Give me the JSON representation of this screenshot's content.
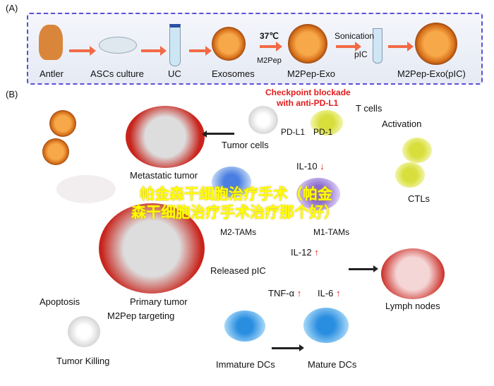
{
  "panel_a": {
    "label": "(A)",
    "steps": [
      "Antler",
      "ASCs culture",
      "UC",
      "Exosomes",
      "M2Pep-Exo",
      "M2Pep-Exo(pIC)"
    ],
    "temp": "37℃",
    "peptide": "M2Pep",
    "sonication": "Sonication",
    "pic": "pIC"
  },
  "panel_b": {
    "label": "(B)",
    "checkpoint": "Checkpoint blockade",
    "checkpoint2": "with anti-PD-L1",
    "t_cells": "T cells",
    "pd_l1": "PD-L1",
    "pd_1": "PD-1",
    "activation": "Activation",
    "tumor_cells": "Tumor cells",
    "metastatic": "Metastatic tumor",
    "il10": "IL-10",
    "m2_tams": "M2-TAMs",
    "m1_tams": "M1-TAMs",
    "ctls": "CTLs",
    "il12": "IL-12",
    "released": "Released pIC",
    "tnf": "TNF-α",
    "il6": "IL-6",
    "primary": "Primary tumor",
    "apoptosis": "Apoptosis",
    "targeting": "M2Pep targeting",
    "killing": "Tumor Killing",
    "lymph": "Lymph nodes",
    "immature": "Immature DCs",
    "mature": "Mature DCs",
    "down": "↓",
    "up": "↑"
  },
  "watermark": {
    "line1": "帕金森干细胞治疗手术（帕金",
    "line2": "森干细胞治疗手术治疗那个好）"
  }
}
